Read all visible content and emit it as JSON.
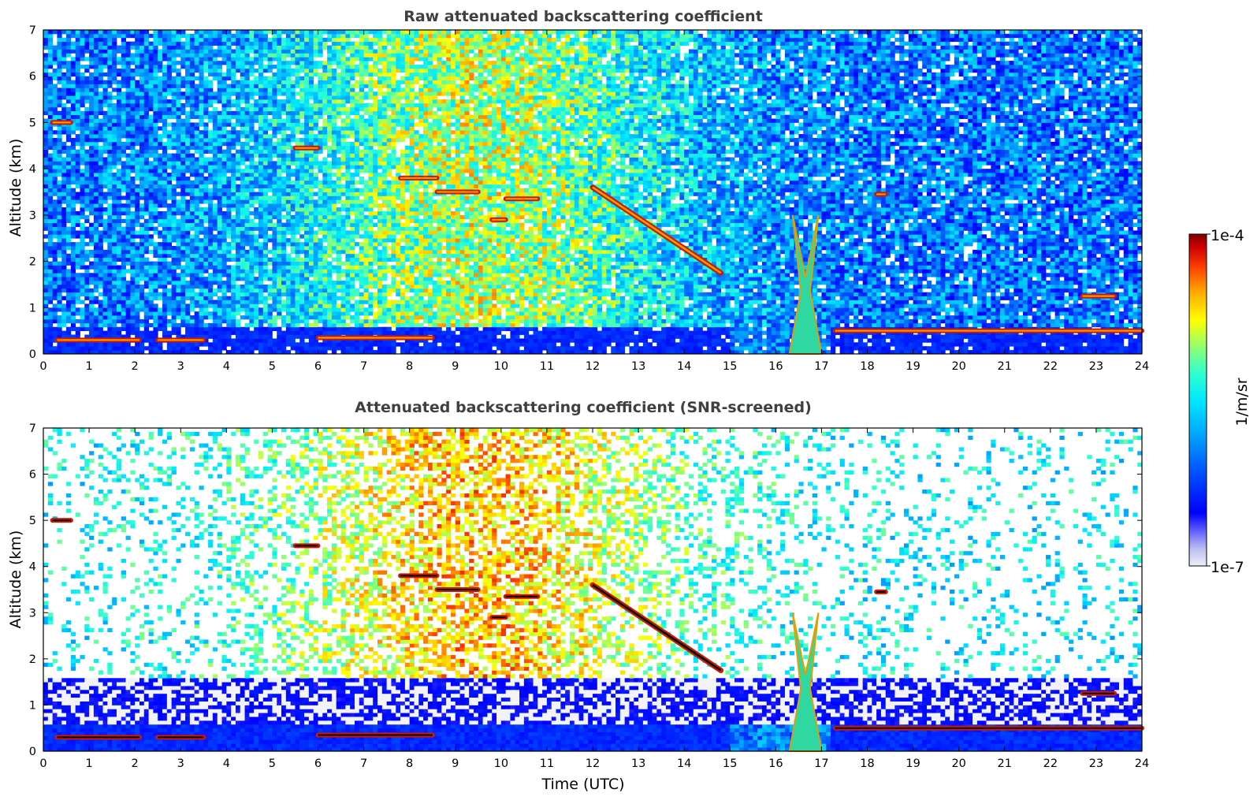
{
  "chart_data": [
    {
      "type": "heatmap",
      "title": "Raw attenuated backscattering coefficient",
      "xlabel": "",
      "ylabel": "Altitude (km)",
      "xlim": [
        0,
        24
      ],
      "ylim": [
        0,
        7
      ],
      "x_ticks": [
        "0",
        "1",
        "2",
        "3",
        "4",
        "5",
        "6",
        "7",
        "8",
        "9",
        "10",
        "11",
        "12",
        "13",
        "14",
        "15",
        "16",
        "17",
        "18",
        "19",
        "20",
        "21",
        "22",
        "23",
        "24"
      ],
      "y_ticks": [
        "0",
        "1",
        "2",
        "3",
        "4",
        "5",
        "6",
        "7"
      ],
      "colormap": "jet (log scale)",
      "value_range": [
        "1e-7",
        "1e-4"
      ],
      "features": [
        {
          "desc": "boundary layer top",
          "x": [
            0.3,
            2.1
          ],
          "y": 0.3
        },
        {
          "desc": "boundary layer top",
          "x": [
            2.5,
            3.5
          ],
          "y": 0.3
        },
        {
          "desc": "boundary layer top",
          "x": [
            6.0,
            8.5
          ],
          "y": 0.35
        },
        {
          "desc": "elevated layer",
          "x": [
            7.8,
            8.6
          ],
          "y": 3.8
        },
        {
          "desc": "elevated layer",
          "x": [
            8.6,
            9.5
          ],
          "y": 3.5
        },
        {
          "desc": "elevated layer",
          "x": [
            10.1,
            10.8
          ],
          "y": 3.35
        },
        {
          "desc": "elevated layer",
          "x": [
            9.8,
            10.1
          ],
          "y": 2.9
        },
        {
          "desc": "elevated layer",
          "x": [
            0.2,
            0.6
          ],
          "y": 5.0
        },
        {
          "desc": "elevated layer",
          "x": [
            5.5,
            6.0
          ],
          "y": 4.45
        },
        {
          "desc": "descending layer",
          "x": [
            12.0,
            14.8
          ],
          "y_start": 3.6,
          "y_end": 1.75
        },
        {
          "desc": "deep convective plume",
          "x": [
            16.3,
            17.0
          ],
          "y_top": 3.0
        },
        {
          "desc": "low cloud layer",
          "x": [
            17.3,
            24.0
          ],
          "y": 0.5
        },
        {
          "desc": "elevated layer",
          "x": [
            22.7,
            23.4
          ],
          "y": 1.25
        },
        {
          "desc": "elevated layer",
          "x": [
            18.2,
            18.4
          ],
          "y": 3.45
        }
      ]
    },
    {
      "type": "heatmap",
      "title": "Attenuated backscattering coefficient (SNR-screened)",
      "xlabel": "Time (UTC)",
      "ylabel": "Altitude (km)",
      "xlim": [
        0,
        24
      ],
      "ylim": [
        0,
        7
      ],
      "x_ticks": [
        "0",
        "1",
        "2",
        "3",
        "4",
        "5",
        "6",
        "7",
        "8",
        "9",
        "10",
        "11",
        "12",
        "13",
        "14",
        "15",
        "16",
        "17",
        "18",
        "19",
        "20",
        "21",
        "22",
        "23",
        "24"
      ],
      "y_ticks": [
        "0",
        "1",
        "2",
        "3",
        "4",
        "5",
        "6",
        "7"
      ],
      "colormap": "jet (log scale)",
      "value_range": [
        "1e-7",
        "1e-4"
      ],
      "features": [
        {
          "desc": "boundary layer top",
          "x": [
            0.3,
            2.1
          ],
          "y": 0.3
        },
        {
          "desc": "boundary layer top",
          "x": [
            2.5,
            3.5
          ],
          "y": 0.3
        },
        {
          "desc": "boundary layer top",
          "x": [
            6.0,
            8.5
          ],
          "y": 0.35
        },
        {
          "desc": "elevated layer",
          "x": [
            7.8,
            8.6
          ],
          "y": 3.8
        },
        {
          "desc": "elevated layer",
          "x": [
            8.6,
            9.5
          ],
          "y": 3.5
        },
        {
          "desc": "elevated layer",
          "x": [
            10.1,
            10.8
          ],
          "y": 3.35
        },
        {
          "desc": "elevated layer",
          "x": [
            9.8,
            10.1
          ],
          "y": 2.9
        },
        {
          "desc": "elevated layer",
          "x": [
            0.2,
            0.6
          ],
          "y": 5.0
        },
        {
          "desc": "elevated layer",
          "x": [
            5.5,
            6.0
          ],
          "y": 4.45
        },
        {
          "desc": "descending layer",
          "x": [
            12.0,
            14.8
          ],
          "y_start": 3.6,
          "y_end": 1.75
        },
        {
          "desc": "deep convective plume",
          "x": [
            16.3,
            17.0
          ],
          "y_top": 3.0
        },
        {
          "desc": "low cloud layer",
          "x": [
            17.3,
            24.0
          ],
          "y": 0.5
        },
        {
          "desc": "elevated layer",
          "x": [
            22.7,
            23.4
          ],
          "y": 1.25
        },
        {
          "desc": "elevated layer",
          "x": [
            18.2,
            18.4
          ],
          "y": 3.45
        }
      ]
    }
  ],
  "colorbar": {
    "label": "1/m/sr",
    "max_label": "1e-4",
    "min_label": "1e-7",
    "scale": "log",
    "colors": [
      "#e8e8f8",
      "#c8c8f0",
      "#8080ff",
      "#0000ff",
      "#0060ff",
      "#00a0ff",
      "#00e0ff",
      "#40ffc0",
      "#a0ff60",
      "#ffff00",
      "#ffb000",
      "#ff5000",
      "#e00000",
      "#800000"
    ]
  }
}
